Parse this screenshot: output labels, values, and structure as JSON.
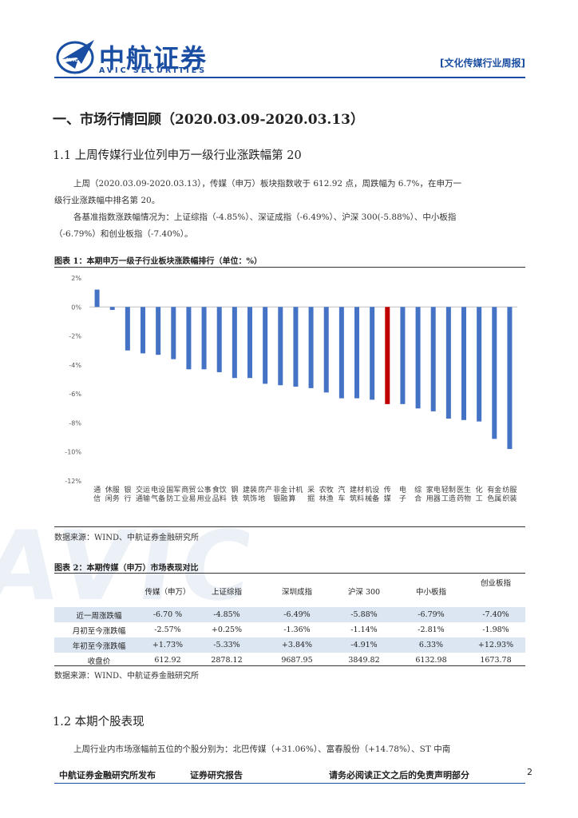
{
  "watermark": "AVIC",
  "header": {
    "logo_cn": "中航证券",
    "logo_en": "AVIC SECURITIES",
    "report_tag": "[文化传媒行业周报]",
    "brand_color": "#1a4ea2"
  },
  "section1_title": "一、市场行情回顾（2020.03.09-2020.03.13）",
  "section1_1_title": "1.1 上周传媒行业位列申万一级行业涨跌幅第 20",
  "para1_line1": "上周（2020.03.09-2020.03.13），传媒（申万）板块指数收于 612.92 点，周跌幅为 6.7%，在申万一",
  "para1_line2": "级行业涨跌幅中排名第 20。",
  "para2_line1": "各基准指数涨跌幅情况为：上证综指（-4.85%）、深证成指（-6.49%）、沪深 300(-5.88%）、中小板指",
  "para2_line2": "（-6.79%）和创业板指（-7.40%）。",
  "figure1_caption": "图表 1：本期申万一级子行业板块涨跌幅排行（单位：%）",
  "figure1_source": "数据来源：WIND、中航证券金融研究所",
  "chart_data": {
    "type": "bar",
    "title": "本期申万一级子行业板块涨跌幅排行（单位：%）",
    "ylabel": "",
    "xlabel": "",
    "ylim": [
      -12,
      2
    ],
    "yticks": [
      2,
      0,
      -2,
      -4,
      -6,
      -8,
      -10,
      -12
    ],
    "ytick_labels": [
      "2%",
      "0%",
      "-2%",
      "-4%",
      "-6%",
      "-8%",
      "-10%",
      "-12%"
    ],
    "bar_color": "#4472c4",
    "highlight_color": "#c00000",
    "highlight_category": "传媒",
    "categories": [
      "通信",
      "休闲服务",
      "银行",
      "交通运输",
      "电气设备",
      "国防军工",
      "商业贸易",
      "公用事业",
      "食品饮料",
      "钢铁",
      "建筑装饰",
      "房地产",
      "非银金融",
      "计算机",
      "采掘",
      "农林牧渔",
      "汽车",
      "建筑材料",
      "机械设备",
      "传媒",
      "电子",
      "综合",
      "家用电器",
      "轻工制造",
      "医药生物",
      "化工",
      "有色金属",
      "纺织服装"
    ],
    "values": [
      1.2,
      -0.2,
      -3.0,
      -3.2,
      -3.3,
      -3.6,
      -4.3,
      -4.3,
      -4.5,
      -4.9,
      -4.9,
      -5.3,
      -5.4,
      -5.5,
      -5.6,
      -5.9,
      -6.3,
      -6.3,
      -6.4,
      -6.7,
      -6.7,
      -7.0,
      -7.2,
      -7.7,
      -7.8,
      -7.9,
      -9.1,
      -9.8
    ]
  },
  "figure2_caption": "图表 2：本期传媒（申万）市场表现对比",
  "figure2_source": "数据来源：WIND、中航证券金融研究所",
  "table": {
    "headers": [
      "",
      "传媒（申万）",
      "上证综指",
      "深圳成指",
      "沪深 300",
      "中小板指",
      "创业板指"
    ],
    "rows": [
      [
        "近一周涨跌幅",
        "-6.70 %",
        "-4.85%",
        "-6.49%",
        "-5.88%",
        "-6.79%",
        "-7.40%"
      ],
      [
        "月初至今涨跌幅",
        "-2.57%",
        "+0.25%",
        "-1.36%",
        "-1.14%",
        "-2.81%",
        "-1.98%"
      ],
      [
        "年初至今涨跌幅",
        "+1.73%",
        "-5.33%",
        "+3.84%",
        "-4.91%",
        "6.33%",
        "+12.93%"
      ],
      [
        "收盘价",
        "612.92",
        "2878.12",
        "9687.95",
        "3849.82",
        "6132.98",
        "1673.78"
      ]
    ]
  },
  "section1_2_title": "1.2 本期个股表现",
  "para3": "上周行业内市场涨幅前五位的个股分别为：北巴传媒（+31.06%）、富春股份（+14.78%）、ST 中南",
  "footer": {
    "left": "中航证券金融研究所发布",
    "mid": "证券研究报告",
    "right": "请务必阅读正文之后的免责声明部分",
    "page": "2"
  }
}
